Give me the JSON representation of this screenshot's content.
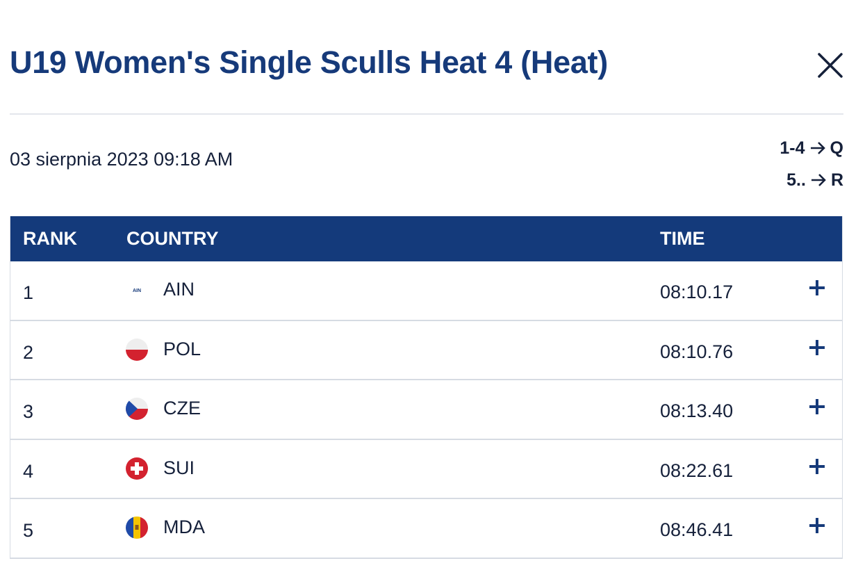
{
  "header": {
    "title": "U19 Women's Single Sculls Heat 4 (Heat)",
    "close_icon": "close-icon"
  },
  "meta": {
    "date": "03 sierpnia 2023 09:18 AM",
    "progression": [
      {
        "range": "1-4",
        "arrow": "→",
        "to": "Q"
      },
      {
        "range": "5..",
        "arrow": "→",
        "to": "R"
      }
    ]
  },
  "table": {
    "headers": {
      "rank": "RANK",
      "country": "COUNTRY",
      "time": "TIME"
    },
    "rows": [
      {
        "rank": "1",
        "flag": "ain-flag-icon",
        "flag_text": "AIN",
        "country": "AIN",
        "time": "08:10.17",
        "expand_icon": "plus-icon"
      },
      {
        "rank": "2",
        "flag": "poland-flag-icon",
        "country": "POL",
        "time": "08:10.76",
        "expand_icon": "plus-icon"
      },
      {
        "rank": "3",
        "flag": "czech-flag-icon",
        "country": "CZE",
        "time": "08:13.40",
        "expand_icon": "plus-icon"
      },
      {
        "rank": "4",
        "flag": "switzerland-flag-icon",
        "country": "SUI",
        "time": "08:22.61",
        "expand_icon": "plus-icon"
      },
      {
        "rank": "5",
        "flag": "moldova-flag-icon",
        "country": "MDA",
        "time": "08:46.41",
        "expand_icon": "plus-icon"
      }
    ]
  },
  "colors": {
    "brand": "#163a7a",
    "header_bg": "#143a7b",
    "row_border": "#d6dbe3"
  }
}
